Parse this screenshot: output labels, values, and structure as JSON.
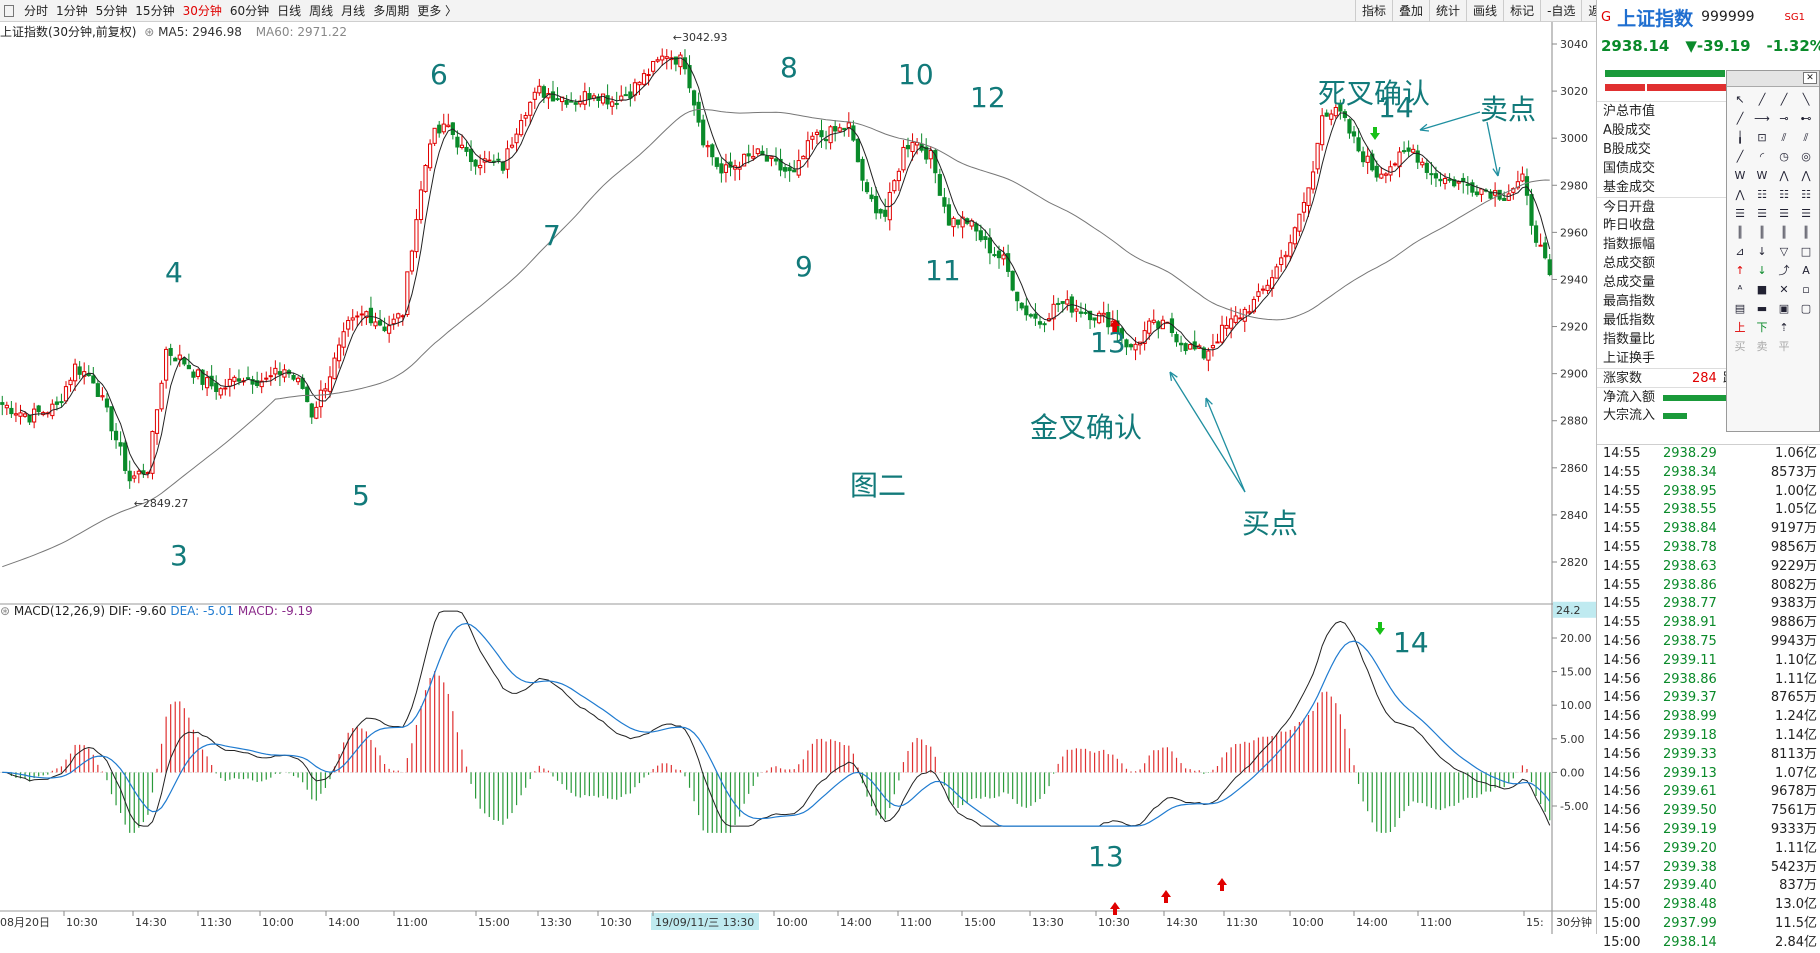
{
  "topbar": {
    "periods": [
      "分时",
      "1分钟",
      "5分钟",
      "15分钟",
      "30分钟",
      "60分钟",
      "日线",
      "周线",
      "月线",
      "多周期",
      "更多 〉"
    ],
    "active_period": "30分钟",
    "tools": [
      "指标",
      "叠加",
      "统计",
      "画线",
      "标记",
      "-自选",
      "返回"
    ]
  },
  "main_chart": {
    "title": "上证指数(30分钟,前复权)",
    "ma5_label": "MA5: 2946.98",
    "ma60_label": "MA60: 2971.22",
    "y_ticks": [
      "3040",
      "3020",
      "3000",
      "2980",
      "2960",
      "2940",
      "2920",
      "2900",
      "2880",
      "2860",
      "2840",
      "2820"
    ],
    "high_label": "3042.93",
    "low_label": "2849.27",
    "caption": "图二",
    "wave_numbers": [
      "3",
      "4",
      "5",
      "6",
      "7",
      "8",
      "9",
      "10",
      "11",
      "12",
      "13",
      "14"
    ],
    "golden_cross": "金叉确认",
    "death_cross": "死叉确认",
    "buy_label": "买点",
    "sell_label": "卖点"
  },
  "macd_chart": {
    "params": "MACD(12,26,9)",
    "dif_label": "DIF: -9.60",
    "dea_label": "DEA: -5.01",
    "macd_label": "MACD: -9.19",
    "current_tag": "24.2",
    "y_ticks": [
      "20.00",
      "15.00",
      "10.00",
      "5.00",
      "0.00",
      "-5.00"
    ],
    "label_13": "13",
    "label_14": "14"
  },
  "x_axis": {
    "labels": [
      "08月20日",
      "10:30",
      "14:30",
      "11:30",
      "10:00",
      "14:00",
      "11:00",
      "15:00",
      "13:30",
      "10:30",
      "19/09/11/三 13:30",
      "10:00",
      "14:00",
      "11:00",
      "15:00",
      "13:30",
      "10:30",
      "14:30",
      "11:30",
      "10:00",
      "14:00",
      "11:00",
      "15:"
    ],
    "period_label": "30分钟"
  },
  "right_panel": {
    "g_label": "G",
    "name": "上证指数",
    "code": "999999",
    "sg_label": "SG1",
    "price": "2938.14",
    "change": "▼-39.19",
    "change_pct": "-1.32%",
    "stats": [
      "沪总市值",
      "A股成交",
      "B股成交",
      "国债成交",
      "基金成交",
      "今日开盘",
      "昨日收盘",
      "指数振幅",
      "总成交额",
      "总成交量",
      "最高指数",
      "最低指数",
      "指数量比",
      "上证换手"
    ],
    "zhangjia_label": "涨家数",
    "zhangjia_value": "284",
    "zhangjia_suffix": "跌",
    "net_inflow": "净流入额",
    "block_inflow": "大宗流入",
    "ticks": [
      {
        "t": "14:55",
        "p": "2938.29",
        "v": "1.06亿"
      },
      {
        "t": "14:55",
        "p": "2938.34",
        "v": "8573万"
      },
      {
        "t": "14:55",
        "p": "2938.95",
        "v": "1.00亿"
      },
      {
        "t": "14:55",
        "p": "2938.55",
        "v": "1.05亿"
      },
      {
        "t": "14:55",
        "p": "2938.84",
        "v": "9197万"
      },
      {
        "t": "14:55",
        "p": "2938.78",
        "v": "9856万"
      },
      {
        "t": "14:55",
        "p": "2938.63",
        "v": "9229万"
      },
      {
        "t": "14:55",
        "p": "2938.86",
        "v": "8082万"
      },
      {
        "t": "14:55",
        "p": "2938.77",
        "v": "9383万"
      },
      {
        "t": "14:55",
        "p": "2938.91",
        "v": "9886万"
      },
      {
        "t": "14:56",
        "p": "2938.75",
        "v": "9943万"
      },
      {
        "t": "14:56",
        "p": "2939.11",
        "v": "1.10亿"
      },
      {
        "t": "14:56",
        "p": "2938.86",
        "v": "1.11亿"
      },
      {
        "t": "14:56",
        "p": "2939.37",
        "v": "8765万"
      },
      {
        "t": "14:56",
        "p": "2938.99",
        "v": "1.24亿"
      },
      {
        "t": "14:56",
        "p": "2939.18",
        "v": "1.14亿"
      },
      {
        "t": "14:56",
        "p": "2939.33",
        "v": "8113万"
      },
      {
        "t": "14:56",
        "p": "2939.13",
        "v": "1.07亿"
      },
      {
        "t": "14:56",
        "p": "2939.61",
        "v": "9678万"
      },
      {
        "t": "14:56",
        "p": "2939.50",
        "v": "7561万"
      },
      {
        "t": "14:56",
        "p": "2939.19",
        "v": "9333万"
      },
      {
        "t": "14:56",
        "p": "2939.20",
        "v": "1.11亿"
      },
      {
        "t": "14:57",
        "p": "2939.38",
        "v": "5423万"
      },
      {
        "t": "14:57",
        "p": "2939.40",
        "v": "837万"
      },
      {
        "t": "15:00",
        "p": "2938.48",
        "v": "13.0亿"
      },
      {
        "t": "15:00",
        "p": "2937.99",
        "v": "11.5亿"
      },
      {
        "t": "15:00",
        "p": "2938.14",
        "v": "2.84亿"
      }
    ]
  },
  "draw_tools": {
    "items": [
      "↖",
      "╱",
      "╱",
      "╲",
      "╱",
      "⟶",
      "⊸",
      "⊷",
      "╽",
      "⊡",
      "⫽",
      "⫽",
      "╱",
      "◜",
      "◷",
      "◎",
      "W",
      "W",
      "⋀",
      "⋀",
      "⋀",
      "☷",
      "☷",
      "☷",
      "☰",
      "☰",
      "☰",
      "☰",
      "║",
      "║",
      "║",
      "║",
      "⊿",
      "↓",
      "▽",
      "□",
      "↑",
      "↓",
      "⤴",
      "A",
      "ᴬ",
      "■",
      "✕",
      "▫",
      "▤",
      "▬",
      "▣",
      "▢",
      "上",
      "下",
      "⇡",
      "",
      "买",
      "卖",
      "平",
      ""
    ]
  },
  "colors": {
    "up": "#e00000",
    "down": "#0a8a2a",
    "dea": "#1f7bd0",
    "annotation": "#127a7a",
    "active": "#e00000"
  }
}
